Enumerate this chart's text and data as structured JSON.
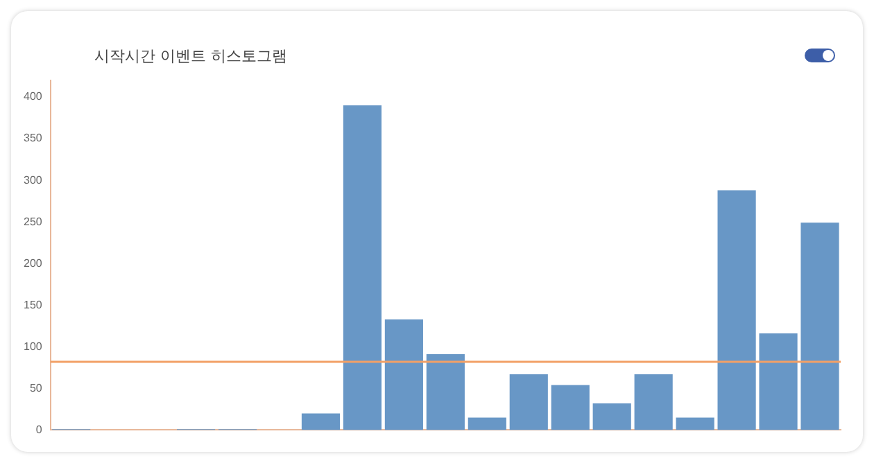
{
  "chart_data": {
    "type": "bar",
    "title": "시작시간 이벤트 히스토그램",
    "categories": [
      null,
      null,
      null,
      null,
      null,
      null,
      null,
      null,
      null,
      null,
      null,
      null,
      null,
      null,
      null,
      null,
      null,
      null,
      null
    ],
    "values": [
      1,
      0,
      0,
      1,
      1,
      0,
      20,
      390,
      133,
      91,
      15,
      67,
      54,
      32,
      67,
      15,
      288,
      116,
      249
    ],
    "color": "#6897c6",
    "ylim": [
      0,
      420
    ],
    "yticks": [
      0,
      50,
      100,
      150,
      200,
      250,
      300,
      350,
      400
    ],
    "grid": false,
    "ref_lines": [
      {
        "axis": "y",
        "value": 82,
        "color": "#f2a066"
      }
    ]
  }
}
